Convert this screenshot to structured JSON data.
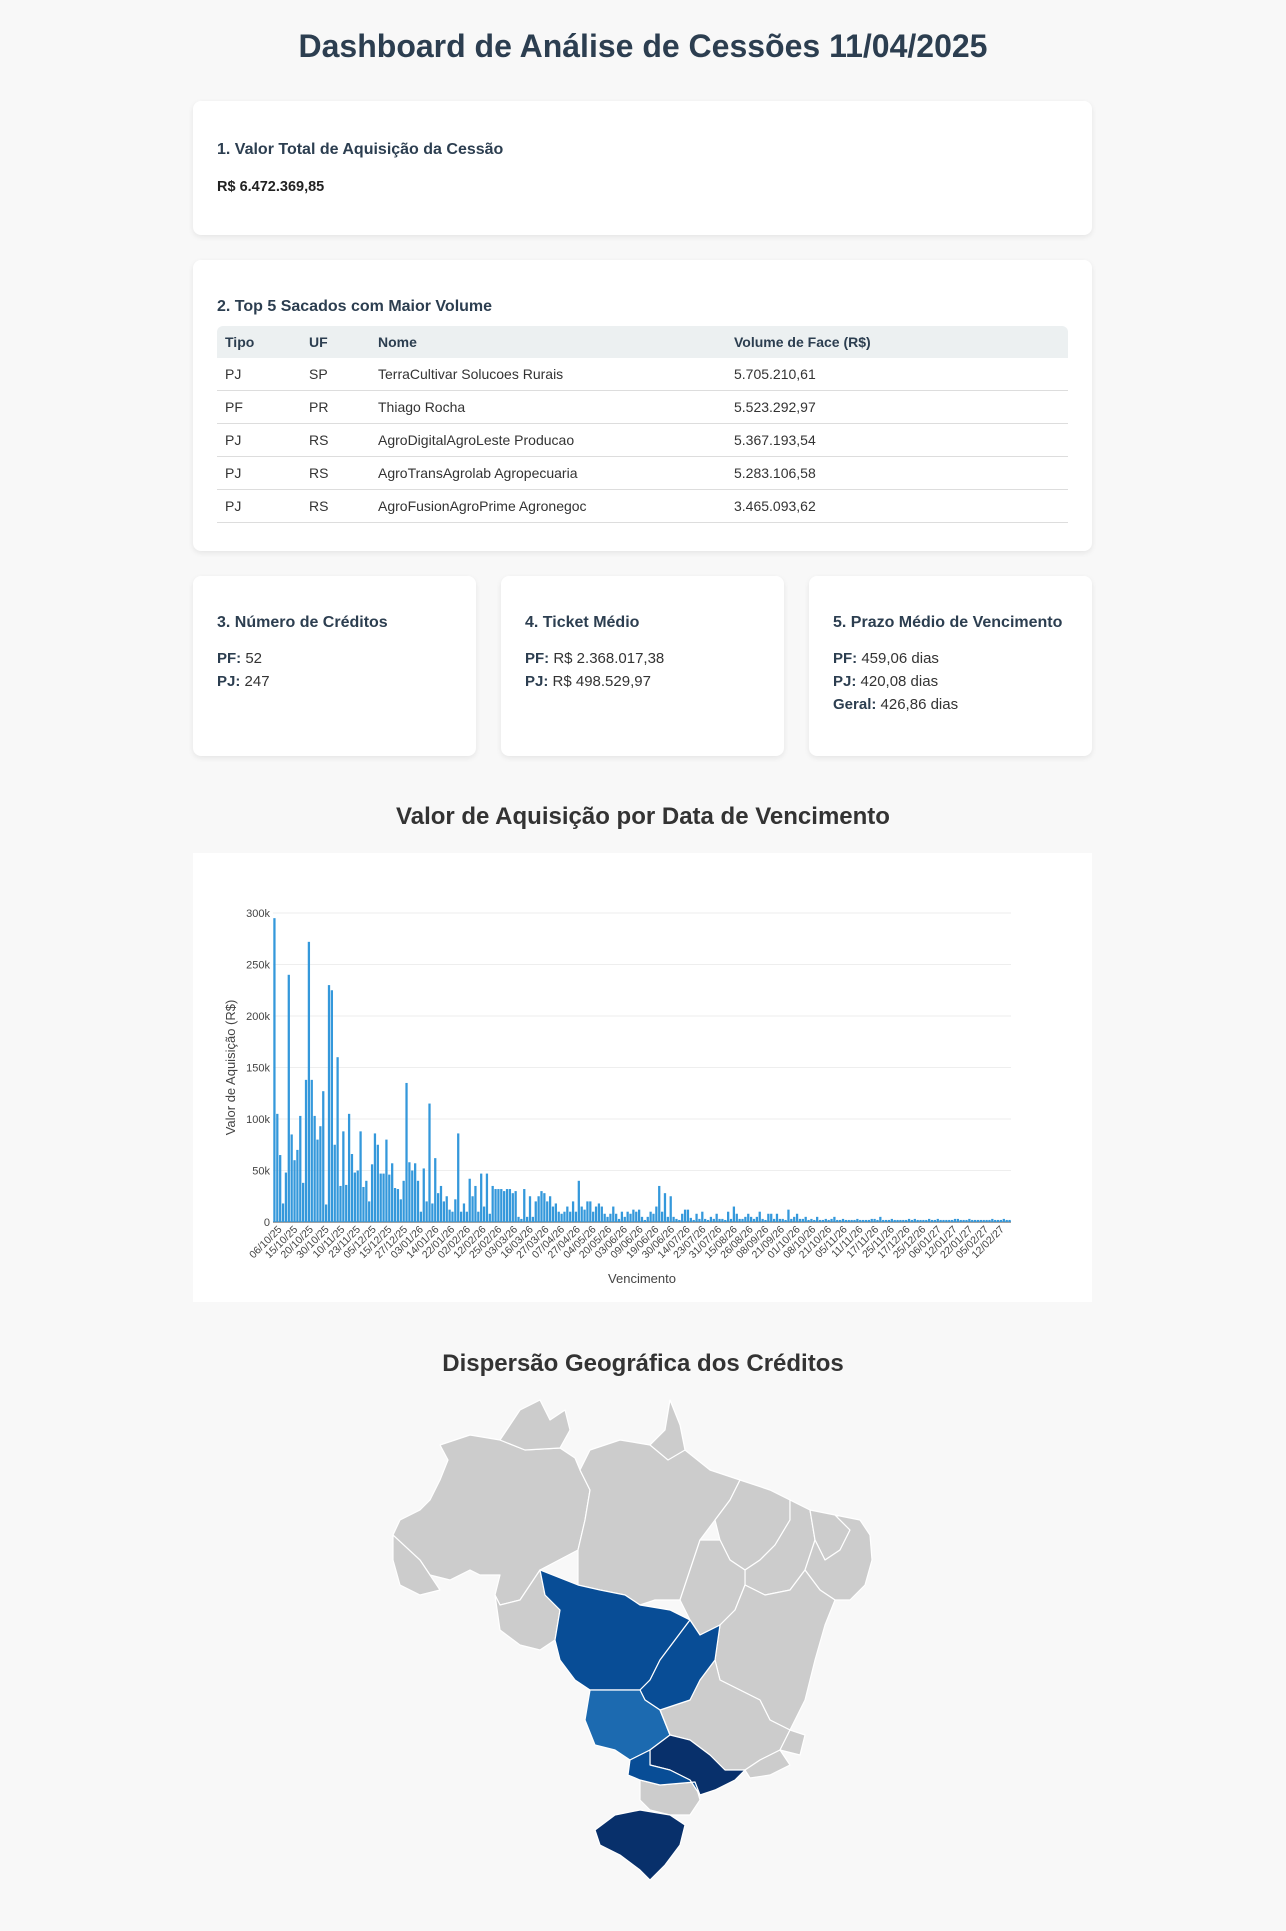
{
  "header": {
    "title": "Dashboard de Análise de Cessões 11/04/2025"
  },
  "total_card": {
    "title": "1. Valor Total de Aquisição da Cessão",
    "value": "R$ 6.472.369,85"
  },
  "top_sacados": {
    "title": "2. Top 5 Sacados com Maior Volume",
    "columns": [
      "Tipo",
      "UF",
      "Nome",
      "Volume de Face (R$)"
    ],
    "rows": [
      [
        "PJ",
        "SP",
        "TerraCultivar Solucoes Rurais",
        "5.705.210,61"
      ],
      [
        "PF",
        "PR",
        "Thiago Rocha",
        "5.523.292,97"
      ],
      [
        "PJ",
        "RS",
        "AgroDigitalAgroLeste Producao",
        "5.367.193,54"
      ],
      [
        "PJ",
        "RS",
        "AgroTransAgrolab Agropecuaria",
        "5.283.106,58"
      ],
      [
        "PJ",
        "RS",
        "AgroFusionAgroPrime Agronegoc",
        "3.465.093,62"
      ]
    ]
  },
  "num_creditos": {
    "title": "3. Número de Créditos",
    "pf_label": "PF:",
    "pf_value": "52",
    "pj_label": "PJ:",
    "pj_value": "247"
  },
  "ticket_medio": {
    "title": "4. Ticket Médio",
    "pf_label": "PF:",
    "pf_value": "R$ 2.368.017,38",
    "pj_label": "PJ:",
    "pj_value": "R$ 498.529,97"
  },
  "prazo_medio": {
    "title": "5. Prazo Médio de Vencimento",
    "pf_label": "PF:",
    "pf_value": "459,06 dias",
    "pj_label": "PJ:",
    "pj_value": "420,08 dias",
    "geral_label": "Geral:",
    "geral_value": "426,86 dias"
  },
  "chart_section": {
    "title": "Valor de Aquisição por Data de Vencimento"
  },
  "map_section": {
    "title": "Dispersão Geográfica dos Créditos"
  },
  "colors": {
    "bar": "#3498db",
    "map_default": "#cccccc",
    "map_dark": "#08306b",
    "map_mid": "#084d96",
    "map_light": "#1c6ab0"
  },
  "chart_data": {
    "type": "bar",
    "title": "",
    "xlabel": "Vencimento",
    "ylabel": "Valor de Aquisição (R$)",
    "ylim": [
      0,
      300000
    ],
    "yticks": [
      "0",
      "50k",
      "100k",
      "150k",
      "200k",
      "250k",
      "300k"
    ],
    "xticks": [
      "06/10/25",
      "15/10/25",
      "20/10/25",
      "30/10/25",
      "10/11/25",
      "23/11/25",
      "05/12/25",
      "15/12/25",
      "27/12/25",
      "03/01/26",
      "14/01/26",
      "22/01/26",
      "02/02/26",
      "12/02/26",
      "25/02/26",
      "03/03/26",
      "16/03/26",
      "27/03/26",
      "07/04/26",
      "27/04/26",
      "04/05/26",
      "20/05/26",
      "03/06/26",
      "09/06/26",
      "19/06/26",
      "30/06/26",
      "14/07/26",
      "23/07/26",
      "31/07/26",
      "15/08/26",
      "26/08/26",
      "08/09/26",
      "21/09/26",
      "01/10/26",
      "08/10/26",
      "21/10/26",
      "05/11/26",
      "11/11/26",
      "17/11/26",
      "25/11/26",
      "17/12/26",
      "25/12/26",
      "06/01/27",
      "12/01/27",
      "22/01/27",
      "05/02/27",
      "12/02/27"
    ],
    "grid": true,
    "values": [
      295000,
      105000,
      65000,
      18000,
      48000,
      240000,
      85000,
      60000,
      70000,
      103000,
      38000,
      138000,
      272000,
      138000,
      103000,
      80000,
      93000,
      127000,
      17000,
      230000,
      225000,
      75000,
      160000,
      35000,
      88000,
      36000,
      105000,
      66000,
      48000,
      50000,
      88000,
      34000,
      40000,
      20000,
      56000,
      86000,
      75000,
      47000,
      47000,
      80000,
      46000,
      57000,
      33000,
      32000,
      22000,
      40000,
      135000,
      58000,
      50000,
      57000,
      40000,
      10000,
      52000,
      20000,
      115000,
      18000,
      62000,
      28000,
      35000,
      20000,
      25000,
      12000,
      10000,
      22000,
      86000,
      10000,
      18000,
      10000,
      42000,
      25000,
      35000,
      10000,
      47000,
      15000,
      47000,
      8000,
      35000,
      32000,
      32000,
      32000,
      30000,
      32000,
      32000,
      28000,
      30000,
      5000,
      3000,
      32000,
      5000,
      25000,
      5000,
      20000,
      25000,
      30000,
      28000,
      20000,
      25000,
      15000,
      18000,
      10000,
      8000,
      10000,
      15000,
      10000,
      20000,
      10000,
      40000,
      15000,
      12000,
      20000,
      20000,
      10000,
      15000,
      18000,
      15000,
      8000,
      5000,
      8000,
      15000,
      8000,
      3000,
      10000,
      5000,
      10000,
      8000,
      12000,
      10000,
      12000,
      5000,
      2000,
      5000,
      10000,
      8000,
      15000,
      35000,
      10000,
      28000,
      5000,
      25000,
      5000,
      3000,
      2000,
      8000,
      12000,
      12000,
      4000,
      2000,
      8000,
      3000,
      10000,
      3000,
      2000,
      5000,
      3000,
      8000,
      3000,
      3000,
      2000,
      10000,
      3000,
      15000,
      8000,
      3000,
      3000,
      5000,
      8000,
      5000,
      3000,
      5000,
      10000,
      3000,
      2000,
      8000,
      8000,
      3000,
      8000,
      3000,
      3000,
      2000,
      12000,
      3000,
      5000,
      8000,
      3000,
      3000,
      5000,
      2000,
      3000,
      2000,
      5000,
      2000,
      2000,
      3000,
      2000,
      3000,
      5000,
      2000,
      2000,
      3000,
      2000,
      2000,
      2000,
      2000,
      3000,
      2000,
      2000,
      2000,
      2000,
      3000,
      3000,
      2000,
      5000,
      2000,
      2000,
      2000,
      3000,
      2000,
      2000,
      2000,
      2000,
      2000,
      3000,
      2000,
      3000,
      2000,
      2000,
      2000,
      2000,
      3000,
      2000,
      2000,
      3000,
      2000,
      2000,
      2000,
      2000,
      2000,
      3000,
      3000,
      2000,
      2000,
      2000,
      3000,
      2000,
      2000,
      2000,
      2000,
      2000,
      2000,
      2000,
      3000,
      2000,
      2000,
      2000,
      3000,
      2000,
      2000
    ]
  },
  "map_data": {
    "default_state": "default",
    "highlighted_states": [
      {
        "uf": "MT",
        "level": "mid"
      },
      {
        "uf": "GO",
        "level": "mid"
      },
      {
        "uf": "MS",
        "level": "light"
      },
      {
        "uf": "SP",
        "level": "dark"
      },
      {
        "uf": "PR",
        "level": "mid"
      },
      {
        "uf": "RS",
        "level": "dark"
      }
    ]
  }
}
